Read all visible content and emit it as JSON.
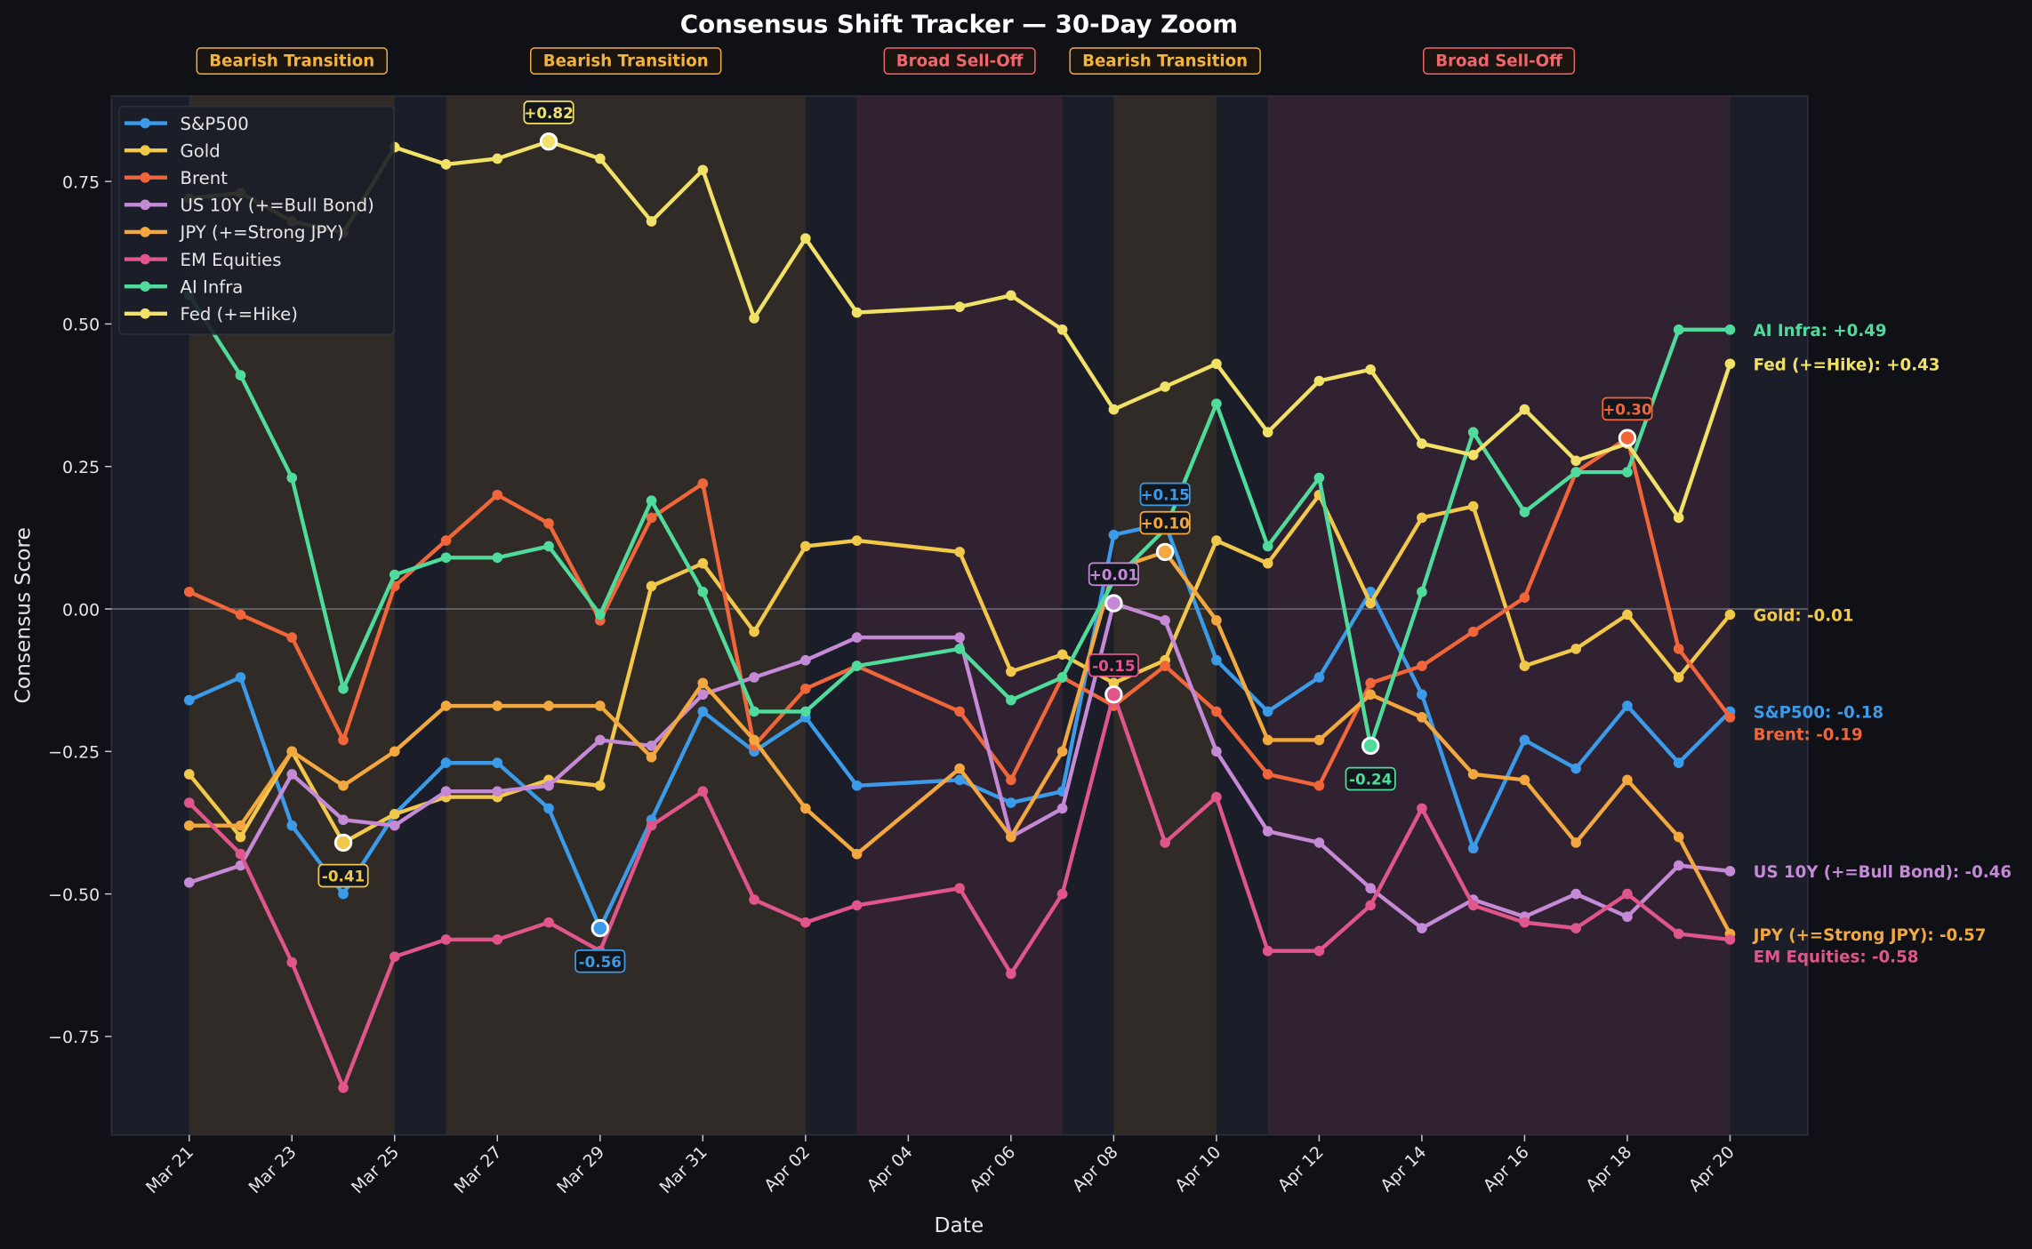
{
  "chart_data": {
    "type": "line",
    "title": "Consensus Shift Tracker — 30-Day Zoom",
    "xlabel": "Date",
    "ylabel": "Consensus Score",
    "ylim": [
      -0.93,
      0.9
    ],
    "yticks": [
      -0.75,
      -0.5,
      -0.25,
      0.0,
      0.25,
      0.5,
      0.75
    ],
    "ytick_labels": [
      "−0.75",
      "−0.50",
      "−0.25",
      "0.00",
      "0.25",
      "0.50",
      "0.75"
    ],
    "xtick_labels": [
      "Mar 21",
      "Mar 23",
      "Mar 25",
      "Mar 27",
      "Mar 29",
      "Mar 31",
      "Apr 02",
      "Apr 04",
      "Apr 06",
      "Apr 08",
      "Apr 10",
      "Apr 12",
      "Apr 14",
      "Apr 16",
      "Apr 18",
      "Apr 20"
    ],
    "grid": false,
    "zero_line": true,
    "legend_position": "upper-left",
    "x": [
      "Mar 21",
      "Mar 22",
      "Mar 23",
      "Mar 24",
      "Mar 25",
      "Mar 26",
      "Mar 27",
      "Mar 28",
      "Mar 29",
      "Mar 30",
      "Mar 31",
      "Apr 01",
      "Apr 02",
      "Apr 03",
      "Apr 04",
      "Apr 05",
      "Apr 06",
      "Apr 07",
      "Apr 08",
      "Apr 09",
      "Apr 10",
      "Apr 11",
      "Apr 12",
      "Apr 13",
      "Apr 14",
      "Apr 15",
      "Apr 16",
      "Apr 17",
      "Apr 18",
      "Apr 19",
      "Apr 20"
    ],
    "series": [
      {
        "name": "S&P500",
        "color": "#3b9be8",
        "values": [
          -0.16,
          -0.12,
          -0.38,
          -0.5,
          -0.36,
          -0.27,
          -0.27,
          -0.35,
          -0.56,
          -0.37,
          -0.18,
          -0.25,
          -0.19,
          -0.31,
          null,
          -0.3,
          -0.34,
          -0.32,
          0.13,
          0.15,
          -0.09,
          -0.18,
          -0.12,
          0.03,
          -0.15,
          -0.42,
          -0.23,
          -0.28,
          -0.17,
          -0.27,
          -0.18
        ]
      },
      {
        "name": "Gold",
        "color": "#f2c84b",
        "values": [
          -0.29,
          -0.4,
          -0.25,
          -0.41,
          -0.36,
          -0.33,
          -0.33,
          -0.3,
          -0.31,
          0.04,
          0.08,
          -0.04,
          0.11,
          0.12,
          null,
          0.1,
          -0.11,
          -0.08,
          -0.13,
          -0.09,
          0.12,
          0.08,
          0.2,
          0.01,
          0.16,
          0.18,
          -0.1,
          -0.07,
          -0.01,
          -0.12,
          -0.01
        ]
      },
      {
        "name": "Brent",
        "color": "#f0663a",
        "values": [
          0.03,
          -0.01,
          -0.05,
          -0.23,
          0.04,
          0.12,
          0.2,
          0.15,
          -0.02,
          0.16,
          0.22,
          -0.24,
          -0.14,
          -0.1,
          null,
          -0.18,
          -0.3,
          -0.12,
          -0.17,
          -0.1,
          -0.18,
          -0.29,
          -0.31,
          -0.13,
          -0.1,
          -0.04,
          0.02,
          0.24,
          0.3,
          -0.07,
          -0.19
        ]
      },
      {
        "name": "US 10Y (+=Bull Bond)",
        "color": "#c58ad6",
        "values": [
          -0.48,
          -0.45,
          -0.29,
          -0.37,
          -0.38,
          -0.32,
          -0.32,
          -0.31,
          -0.23,
          -0.24,
          -0.15,
          -0.12,
          -0.09,
          -0.05,
          null,
          -0.05,
          -0.4,
          -0.35,
          0.01,
          -0.02,
          -0.25,
          -0.39,
          -0.41,
          -0.49,
          -0.56,
          -0.51,
          -0.54,
          -0.5,
          -0.54,
          -0.45,
          -0.46
        ]
      },
      {
        "name": "JPY (+=Strong JPY)",
        "color": "#f2a83e",
        "values": [
          -0.38,
          -0.38,
          -0.25,
          -0.31,
          -0.25,
          -0.17,
          -0.17,
          -0.17,
          -0.17,
          -0.26,
          -0.13,
          -0.23,
          -0.35,
          -0.43,
          null,
          -0.28,
          -0.4,
          -0.25,
          0.07,
          0.1,
          -0.02,
          -0.23,
          -0.23,
          -0.15,
          -0.19,
          -0.29,
          -0.3,
          -0.41,
          -0.3,
          -0.4,
          -0.57
        ]
      },
      {
        "name": "EM Equities",
        "color": "#e0568a",
        "values": [
          -0.34,
          -0.43,
          -0.62,
          -0.84,
          -0.61,
          -0.58,
          -0.58,
          -0.55,
          -0.6,
          -0.38,
          -0.32,
          -0.51,
          -0.55,
          -0.52,
          null,
          -0.49,
          -0.64,
          -0.5,
          -0.15,
          -0.41,
          -0.33,
          -0.6,
          -0.6,
          -0.52,
          -0.35,
          -0.52,
          -0.55,
          -0.56,
          -0.5,
          -0.57,
          -0.58
        ]
      },
      {
        "name": "AI Infra",
        "color": "#4fdb9b",
        "values": [
          0.55,
          0.41,
          0.23,
          -0.14,
          0.06,
          0.09,
          0.09,
          0.11,
          -0.01,
          0.19,
          0.03,
          -0.18,
          -0.18,
          -0.1,
          null,
          -0.07,
          -0.16,
          -0.12,
          0.05,
          0.14,
          0.36,
          0.11,
          0.23,
          -0.24,
          0.03,
          0.31,
          0.17,
          0.24,
          0.24,
          0.49,
          0.49
        ]
      },
      {
        "name": "Fed (+=Hike)",
        "color": "#f1e167",
        "values": [
          0.72,
          0.73,
          0.68,
          0.66,
          0.81,
          0.78,
          0.79,
          0.82,
          0.79,
          0.68,
          0.77,
          0.51,
          0.65,
          0.52,
          null,
          0.53,
          0.55,
          0.49,
          0.35,
          0.39,
          0.43,
          0.31,
          0.4,
          0.42,
          0.29,
          0.27,
          0.35,
          0.26,
          0.29,
          0.16,
          0.43
        ]
      }
    ],
    "regimes": [
      {
        "label": "Bearish Transition",
        "start": "Mar 21",
        "end": "Mar 25",
        "color": "#f2b23e",
        "fill": "#3a3126"
      },
      {
        "label": "Bearish Transition",
        "start": "Mar 26",
        "end": "Apr 02",
        "color": "#f2b23e",
        "fill": "#3a3126"
      },
      {
        "label": "Broad Sell-Off",
        "start": "Apr 03",
        "end": "Apr 07",
        "color": "#f0666e",
        "fill": "#3a2434"
      },
      {
        "label": "Bearish Transition",
        "start": "Apr 08",
        "end": "Apr 10",
        "color": "#f2b23e",
        "fill": "#3a3126"
      },
      {
        "label": "Broad Sell-Off",
        "start": "Apr 11",
        "end": "Apr 20",
        "color": "#f0666e",
        "fill": "#3a2434"
      }
    ],
    "annotations": [
      {
        "series": 1,
        "x": "Mar 24",
        "label": "-0.41",
        "pos": "below"
      },
      {
        "series": 7,
        "x": "Mar 28",
        "label": "+0.82",
        "pos": "above"
      },
      {
        "series": 0,
        "x": "Mar 29",
        "label": "-0.56",
        "pos": "below"
      },
      {
        "series": 3,
        "x": "Apr 08",
        "label": "+0.01",
        "pos": "above"
      },
      {
        "series": 5,
        "x": "Apr 08",
        "label": "-0.15",
        "pos": "above"
      },
      {
        "series": 0,
        "x": "Apr 09",
        "label": "+0.15",
        "pos": "above"
      },
      {
        "series": 4,
        "x": "Apr 09",
        "label": "+0.10",
        "pos": "above"
      },
      {
        "series": 6,
        "x": "Apr 13",
        "label": "-0.24",
        "pos": "below"
      },
      {
        "series": 2,
        "x": "Apr 18",
        "label": "+0.30",
        "pos": "above"
      }
    ],
    "end_labels": [
      {
        "series": 6,
        "label": "AI Infra: +0.49"
      },
      {
        "series": 7,
        "label": "Fed (+=Hike): +0.43"
      },
      {
        "series": 1,
        "label": "Gold: -0.01"
      },
      {
        "series": 0,
        "label": "S&P500: -0.18"
      },
      {
        "series": 2,
        "label": "Brent: -0.19"
      },
      {
        "series": 3,
        "label": "US 10Y (+=Bull Bond): -0.46"
      },
      {
        "series": 4,
        "label": "JPY (+=Strong JPY): -0.57"
      },
      {
        "series": 5,
        "label": "EM Equities: -0.58"
      }
    ]
  }
}
